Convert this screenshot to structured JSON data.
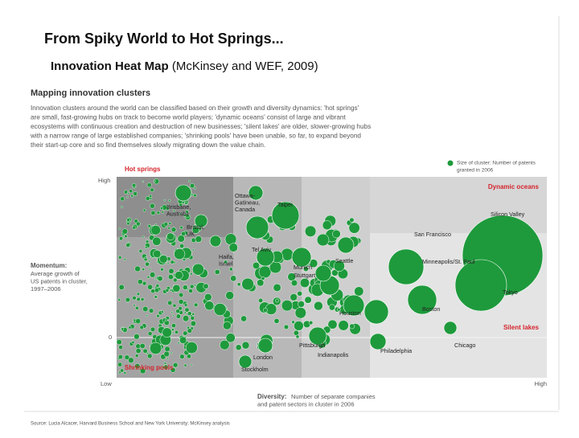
{
  "slide": {
    "title": "From Spiky World to Hot Springs...",
    "subtitle_bold": "Innovation Heat Map",
    "subtitle_rest": "(McKinsey and WEF, 2009)"
  },
  "figure": {
    "heading": "Mapping innovation clusters",
    "description": [
      "Innovation clusters around the world can be classified based on their growth and diversity dynamics: 'hot springs'",
      "are small, fast-growing hubs on track to become world players; 'dynamic oceans' consist of large and vibrant",
      "ecosystems with continuous creation and destruction of new businesses; 'silent lakes' are older, slower-growing hubs",
      "with a narrow range of large established companies; 'shrinking pools' have been unable, so far, to expand beyond",
      "their start-up core and so find themselves slowly migrating down the value chain."
    ],
    "legend": [
      "Size of cluster: Number of patents",
      "granted in 2006"
    ],
    "quadrants": {
      "hot_springs": "Hot springs",
      "dynamic_oceans": "Dynamic oceans",
      "silent_lakes": "Silent lakes",
      "shrinking_pools": "Shrinking pools"
    },
    "y_axis": {
      "high": "High",
      "zero": "0",
      "low": "Low",
      "title": "Momentum:",
      "desc": [
        "Average growth of",
        "US patents in cluster,",
        "1997–2006"
      ]
    },
    "x_axis": {
      "high": "High",
      "title": "Diversity:",
      "desc": [
        "Number of separate companies",
        "and patent sectors in cluster in 2006"
      ]
    },
    "clusters": [
      {
        "lines": [
          "Ottawa-",
          "Gatineau,",
          "Canada"
        ]
      },
      {
        "lines": [
          "Taipei"
        ]
      },
      {
        "lines": [
          "Brisbane,",
          "Australia"
        ]
      },
      {
        "lines": [
          "Silicon Valley"
        ]
      },
      {
        "lines": [
          "Bristol,",
          "UK"
        ]
      },
      {
        "lines": [
          "Tel Aviv"
        ]
      },
      {
        "lines": [
          "San Francisco"
        ]
      },
      {
        "lines": [
          "Haifa,",
          "Israel"
        ]
      },
      {
        "lines": [
          "Munich"
        ]
      },
      {
        "lines": [
          "Stuttgart"
        ]
      },
      {
        "lines": [
          "Seattle"
        ]
      },
      {
        "lines": [
          "Minneapolis/St. Paul"
        ]
      },
      {
        "lines": [
          "Tokyo"
        ]
      },
      {
        "lines": [
          "Houston"
        ]
      },
      {
        "lines": [
          "Boston"
        ]
      },
      {
        "lines": [
          "Pittsburgh"
        ]
      },
      {
        "lines": [
          "Chicago"
        ]
      },
      {
        "lines": [
          "Indianapolis"
        ]
      },
      {
        "lines": [
          "Philadelphia"
        ]
      },
      {
        "lines": [
          "London"
        ]
      },
      {
        "lines": [
          "Stockholm"
        ]
      }
    ],
    "source": "Source: Lucia Alcacer, Harvard Business School and New York University; McKinsey analysis"
  }
}
